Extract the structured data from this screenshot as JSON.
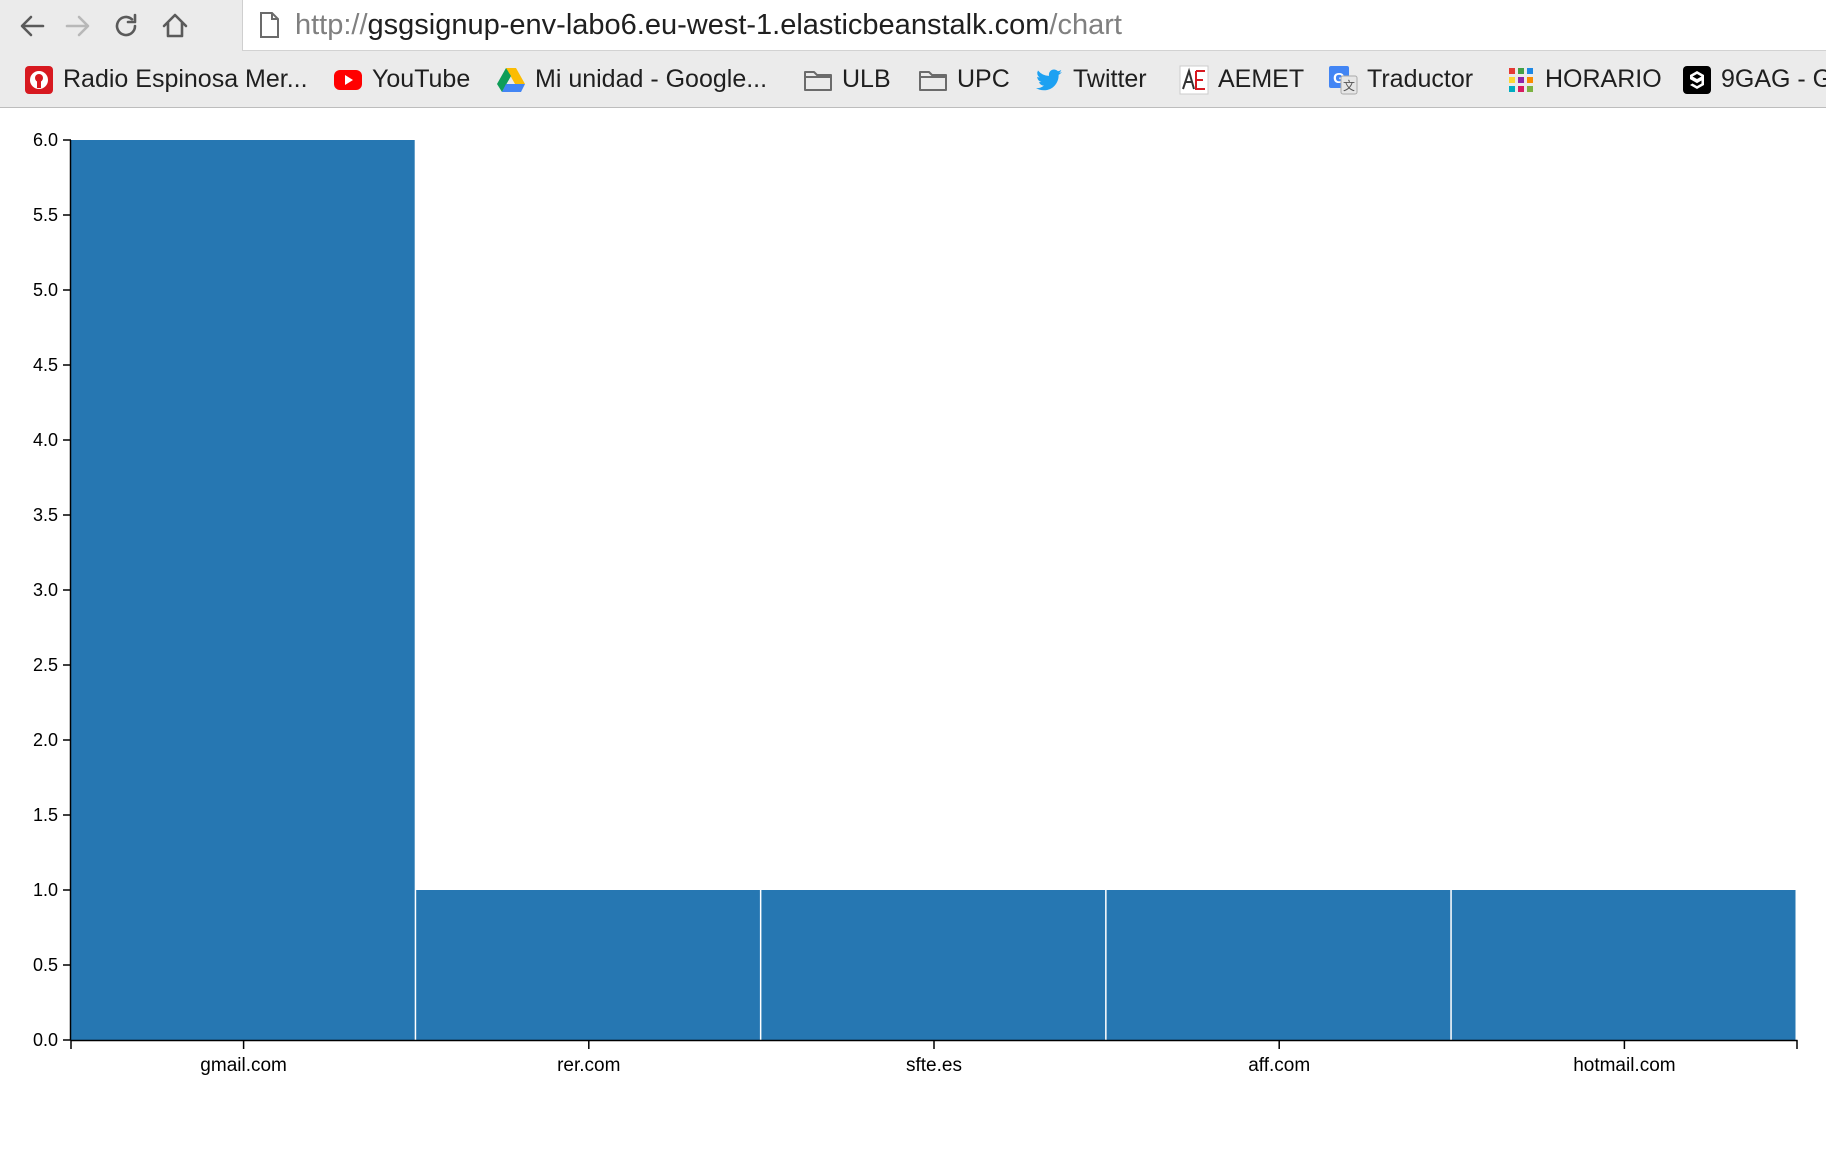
{
  "browser": {
    "nav": {
      "back_icon": "arrow-left-icon",
      "forward_icon": "arrow-right-icon",
      "reload_icon": "reload-icon",
      "home_icon": "home-icon"
    },
    "url": {
      "scheme": "http://",
      "host": "gsgsignup-env-labo6.eu-west-1.elasticbeanstalk.com",
      "path": "/chart"
    },
    "bookmarks": [
      {
        "label": "Radio Espinosa Mer...",
        "icon": "radio-icon"
      },
      {
        "label": "YouTube",
        "icon": "youtube-icon"
      },
      {
        "label": "Mi unidad - Google...",
        "icon": "google-drive-icon"
      },
      {
        "label": "ULB",
        "icon": "folder-icon"
      },
      {
        "label": "UPC",
        "icon": "folder-icon"
      },
      {
        "label": "Twitter",
        "icon": "twitter-icon"
      },
      {
        "label": "AEMET",
        "icon": "aemet-icon"
      },
      {
        "label": "Traductor",
        "icon": "google-translate-icon"
      },
      {
        "label": "HORARIO",
        "icon": "grid-icon"
      },
      {
        "label": "9GAG - G",
        "icon": "9gag-icon"
      }
    ]
  },
  "chart_data": {
    "type": "bar",
    "categories": [
      "gmail.com",
      "rer.com",
      "sfte.es",
      "aff.com",
      "hotmail.com"
    ],
    "values": [
      6,
      1,
      1,
      1,
      1
    ],
    "ylim": [
      0,
      6
    ],
    "yticks": [
      "0.0",
      "0.5",
      "1.0",
      "1.5",
      "2.0",
      "2.5",
      "3.0",
      "3.5",
      "4.0",
      "4.5",
      "5.0",
      "5.5",
      "6.0"
    ],
    "bar_color": "#2677b2",
    "grid": false
  }
}
